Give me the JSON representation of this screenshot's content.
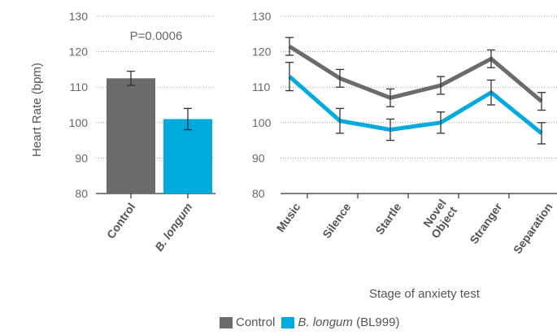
{
  "chart_data": [
    {
      "type": "bar",
      "categories": [
        "Control",
        "B. longum"
      ],
      "values": [
        112.5,
        101.0
      ],
      "error": [
        2.0,
        3.0
      ],
      "ylabel": "Heart Rate (bpm)",
      "ylim": [
        80,
        130
      ],
      "yticks": [
        80,
        90,
        100,
        110,
        120,
        130
      ],
      "annotation": "P=0.0006",
      "grid": true
    },
    {
      "type": "line",
      "categories": [
        "Music",
        "Silence",
        "Startle",
        "Novel Object",
        "Stranger",
        "Separation"
      ],
      "xlabel": "Stage of anxiety test",
      "ylim": [
        80,
        130
      ],
      "yticks": [
        80,
        90,
        100,
        110,
        120,
        130
      ],
      "grid": true,
      "series": [
        {
          "name": "Control",
          "values": [
            121.5,
            112.5,
            107.0,
            110.5,
            118.0,
            106.0
          ],
          "error": [
            2.5,
            2.5,
            2.5,
            2.5,
            2.5,
            2.5
          ]
        },
        {
          "name": "B. longum (BL999)",
          "values": [
            113.0,
            100.5,
            98.0,
            100.0,
            108.5,
            97.0
          ],
          "error": [
            4.0,
            3.5,
            3.0,
            3.0,
            3.5,
            3.0
          ]
        }
      ]
    }
  ],
  "legend": {
    "control_label": "Control",
    "blongum_italic": "B. longum",
    "blongum_suffix": "(BL999)"
  },
  "colors": {
    "control": "#6b6b6b",
    "blongum": "#00aadd"
  }
}
